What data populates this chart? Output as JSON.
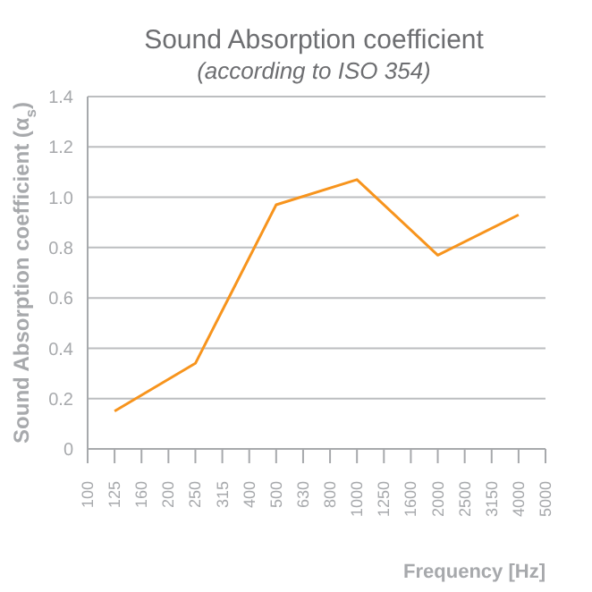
{
  "chart_data": {
    "type": "line",
    "title": "Sound Absorption coefficient",
    "subtitle": "(according to ISO 354)",
    "xlabel": "Frequency [Hz]",
    "ylabel": "Sound Absorption coefficient (α$_{s}$)",
    "categories": [
      "100",
      "125",
      "160",
      "200",
      "250",
      "315",
      "400",
      "500",
      "630",
      "800",
      "1000",
      "1250",
      "1600",
      "2000",
      "2500",
      "3150",
      "4000",
      "5000"
    ],
    "series": [
      {
        "color": "#f7941d",
        "values": [
          null,
          0.15,
          null,
          null,
          0.34,
          null,
          null,
          0.97,
          null,
          null,
          1.07,
          null,
          null,
          0.77,
          null,
          null,
          0.93,
          null
        ]
      }
    ],
    "ylim": [
      0,
      1.4
    ],
    "yticks": [
      0,
      0.2,
      0.4,
      0.6,
      0.8,
      {
        "value": 1,
        "label": "1.0"
      },
      1.2,
      1.4
    ],
    "grid": "y",
    "legend": false,
    "marker": "none",
    "line_style": "solid"
  }
}
